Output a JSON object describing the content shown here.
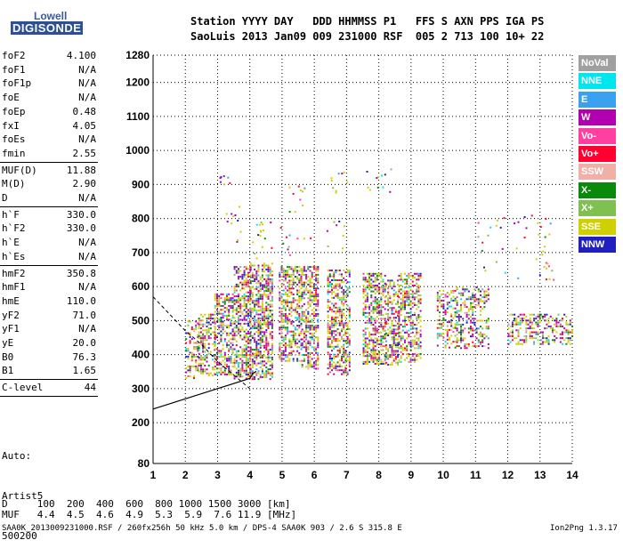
{
  "logo": {
    "top": "Lowell",
    "bottom": "DIGISONDE"
  },
  "header": {
    "line1": "Station YYYY DAY   DDD HHMMSS P1   FFS S AXN PPS IGA PS",
    "line2": "SaoLuis 2013 Jan09 009 231000 RSF  005 2 713 100 10+ 22"
  },
  "params": [
    {
      "k": "foF2",
      "v": "4.100"
    },
    {
      "k": "foF1",
      "v": "N/A"
    },
    {
      "k": "foF1p",
      "v": "N/A"
    },
    {
      "k": "foE",
      "v": "N/A"
    },
    {
      "k": "foEp",
      "v": "0.48"
    },
    {
      "k": "fxI",
      "v": "4.05"
    },
    {
      "k": "foEs",
      "v": "N/A"
    },
    {
      "k": "fmin",
      "v": "2.55"
    },
    {
      "k": "MUF(D)",
      "v": "11.88"
    },
    {
      "k": "M(D)",
      "v": "2.90"
    },
    {
      "k": "D",
      "v": "N/A"
    },
    {
      "k": "h`F",
      "v": "330.0"
    },
    {
      "k": "h`F2",
      "v": "330.0"
    },
    {
      "k": "h`E",
      "v": "N/A"
    },
    {
      "k": "h`Es",
      "v": "N/A"
    },
    {
      "k": "hmF2",
      "v": "350.8"
    },
    {
      "k": "hmF1",
      "v": "N/A"
    },
    {
      "k": "hmE",
      "v": "110.0"
    },
    {
      "k": "yF2",
      "v": "71.0"
    },
    {
      "k": "yF1",
      "v": "N/A"
    },
    {
      "k": "yE",
      "v": "20.0"
    },
    {
      "k": "B0",
      "v": "76.3"
    },
    {
      "k": "B1",
      "v": "1.65"
    },
    {
      "k": "C-level",
      "v": "44"
    }
  ],
  "auto": {
    "l1": "Auto:",
    "l2": "Artist5",
    "l3": "500200"
  },
  "legend": [
    {
      "label": "NoVal",
      "color": "#a0a0a0"
    },
    {
      "label": "NNE",
      "color": "#00e5ee"
    },
    {
      "label": "E",
      "color": "#3aa0f0"
    },
    {
      "label": "W",
      "color": "#b000b0"
    },
    {
      "label": "Vo-",
      "color": "#ff40a0"
    },
    {
      "label": "Vo+",
      "color": "#ff0030"
    },
    {
      "label": "SSW",
      "color": "#f0b0a8"
    },
    {
      "label": "X-",
      "color": "#0a8a0a"
    },
    {
      "label": "X+",
      "color": "#80c050"
    },
    {
      "label": "SSE",
      "color": "#d0d000"
    },
    {
      "label": "NNW",
      "color": "#2020c0"
    }
  ],
  "bottom": {
    "d_line": "D     100  200  400  600  800 1000 1500 3000 [km]",
    "muf_line": "MUF   4.4  4.5  4.6  4.9  5.3  5.9  7.6 11.9 [MHz]",
    "footer_left": "SAA0K_2013009231000.RSF / 260fx256h 50 kHz 5.0 km / DPS-4 SAA0K 903 / 2.6 S 315.8 E",
    "footer_right": "Ion2Png 1.3.17"
  },
  "chart_data": {
    "type": "scatter",
    "title": "",
    "xlabel": "",
    "ylabel": "",
    "xlim": [
      1,
      14
    ],
    "ylim": [
      80,
      1280
    ],
    "xticks": [
      1,
      2,
      3,
      4,
      5,
      6,
      7,
      8,
      9,
      10,
      11,
      12,
      13,
      14
    ],
    "yticks": [
      80,
      200,
      300,
      400,
      500,
      600,
      700,
      800,
      900,
      1000,
      1100,
      1200,
      1280
    ],
    "grid": true,
    "legend_position": "right",
    "clusters": [
      {
        "x": [
          2.0,
          2.4
        ],
        "y": [
          330,
          500
        ],
        "density": 0.35
      },
      {
        "x": [
          2.4,
          2.9
        ],
        "y": [
          340,
          520
        ],
        "density": 0.45
      },
      {
        "x": [
          2.9,
          3.5
        ],
        "y": [
          340,
          580
        ],
        "density": 0.55
      },
      {
        "x": [
          3.5,
          4.0
        ],
        "y": [
          330,
          660
        ],
        "density": 0.55
      },
      {
        "x": [
          4.0,
          4.7
        ],
        "y": [
          330,
          670
        ],
        "density": 0.6
      },
      {
        "x": [
          4.9,
          5.6
        ],
        "y": [
          380,
          660
        ],
        "density": 0.55
      },
      {
        "x": [
          5.6,
          6.1
        ],
        "y": [
          360,
          660
        ],
        "density": 0.55
      },
      {
        "x": [
          6.4,
          7.1
        ],
        "y": [
          340,
          650
        ],
        "density": 0.55
      },
      {
        "x": [
          7.5,
          8.2
        ],
        "y": [
          370,
          640
        ],
        "density": 0.55
      },
      {
        "x": [
          8.2,
          8.6
        ],
        "y": [
          370,
          620
        ],
        "density": 0.5
      },
      {
        "x": [
          8.6,
          9.3
        ],
        "y": [
          380,
          640
        ],
        "density": 0.5
      },
      {
        "x": [
          9.8,
          10.4
        ],
        "y": [
          420,
          590
        ],
        "density": 0.4
      },
      {
        "x": [
          10.4,
          11.4
        ],
        "y": [
          420,
          600
        ],
        "density": 0.4
      },
      {
        "x": [
          12.0,
          13.0
        ],
        "y": [
          430,
          520
        ],
        "density": 0.45
      },
      {
        "x": [
          13.0,
          14.0
        ],
        "y": [
          430,
          520
        ],
        "density": 0.35
      }
    ],
    "high_scatter": [
      {
        "x": [
          3.0,
          3.4
        ],
        "y": [
          900,
          930
        ]
      },
      {
        "x": [
          3.2,
          3.7
        ],
        "y": [
          720,
          840
        ]
      },
      {
        "x": [
          5.2,
          5.8
        ],
        "y": [
          820,
          900
        ]
      },
      {
        "x": [
          6.5,
          7.0
        ],
        "y": [
          870,
          940
        ]
      },
      {
        "x": [
          7.6,
          8.4
        ],
        "y": [
          880,
          960
        ]
      },
      {
        "x": [
          4.0,
          7.0
        ],
        "y": [
          680,
          800
        ]
      },
      {
        "x": [
          11.0,
          13.5
        ],
        "y": [
          620,
          820
        ]
      }
    ],
    "profile_curve": {
      "x": [
        1,
        2,
        3,
        4,
        4.1,
        4.2
      ],
      "y": [
        240,
        270,
        300,
        330,
        345,
        350.8
      ]
    },
    "model_curve": {
      "x": [
        1.0,
        1.5,
        2.0,
        2.5,
        3.0,
        3.5,
        4.0
      ],
      "y": [
        570,
        520,
        470,
        430,
        380,
        340,
        300
      ]
    }
  }
}
